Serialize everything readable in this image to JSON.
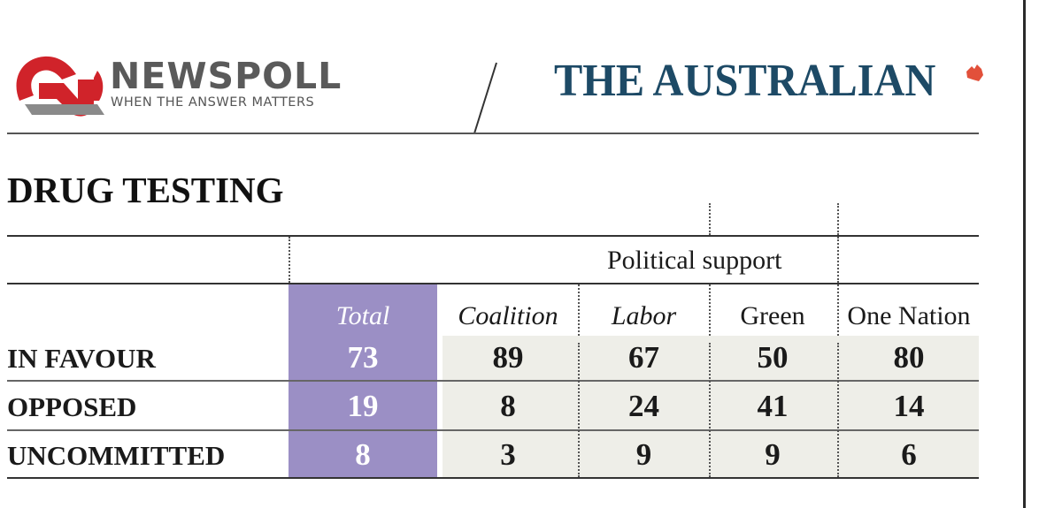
{
  "header": {
    "newspoll_wordmark": "NEWSPOLL",
    "newspoll_tagline": "WHEN THE ANSWER MATTERS",
    "publication": "THE AUSTRALIAN"
  },
  "title": "DRUG TESTING",
  "table": {
    "group_header": "Political support",
    "columns": [
      "Total",
      "Coalition",
      "Labor",
      "Green",
      "One Nation"
    ],
    "rows": [
      {
        "label": "IN FAVOUR",
        "values": [
          "73",
          "89",
          "67",
          "50",
          "80"
        ]
      },
      {
        "label": "OPPOSED",
        "values": [
          "19",
          "8",
          "24",
          "41",
          "14"
        ]
      },
      {
        "label": "UNCOMMITTED",
        "values": [
          "8",
          "3",
          "9",
          "9",
          "6"
        ]
      }
    ]
  },
  "colors": {
    "total_column": "#9b8fc5",
    "party_columns": "#eeeee8",
    "newspoll_red": "#d0232a",
    "australian_blue": "#1d4a66"
  }
}
